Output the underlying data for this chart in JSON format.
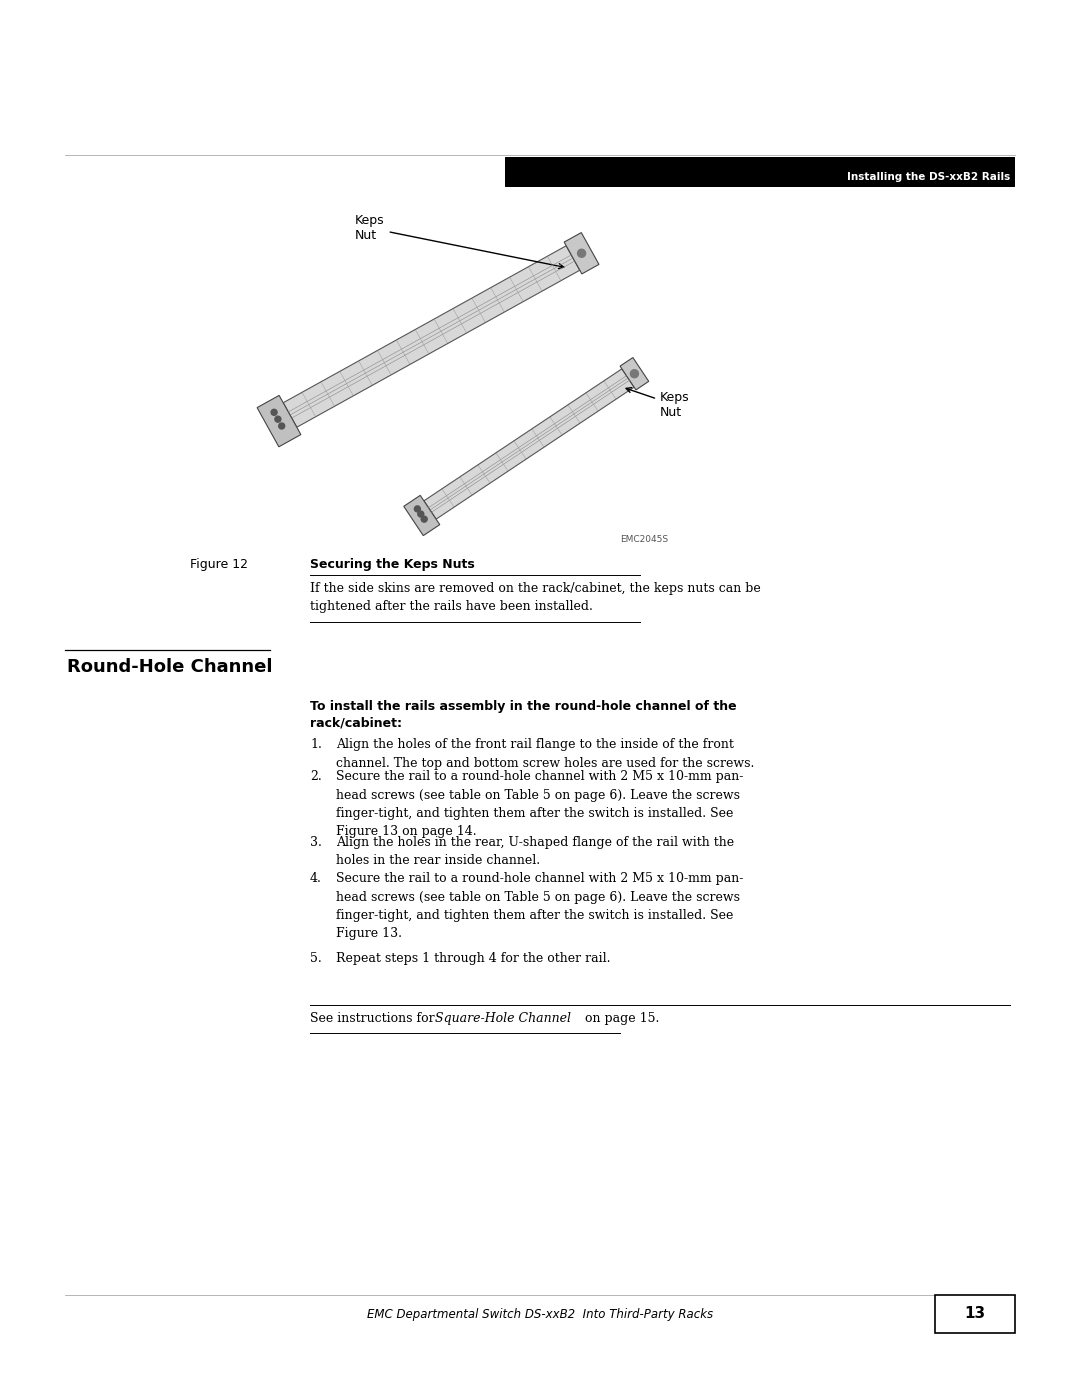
{
  "page_width": 10.8,
  "page_height": 13.97,
  "bg_color": "#ffffff",
  "header_bar_color": "#000000",
  "header_text": "Installing the DS-xxB2 Rails",
  "header_text_color": "#ffffff",
  "figure_label": "Figure 12",
  "figure_title": "Securing the Keps Nuts",
  "figure_caption_line1": "If the side skins are removed on the rack/cabinet, the keps nuts can be",
  "figure_caption_line2": "tightened after the rails have been installed.",
  "emc_code": "EMC2045S",
  "keps_nut_label_1": "Keps\nNut",
  "keps_nut_label_2": "Keps\nNut",
  "section_title": "Round-Hole Channel",
  "bold_intro_line1": "To install the rails assembly in the round-hole channel of the",
  "bold_intro_line2": "rack/cabinet:",
  "steps": [
    "Align the holes of the front rail flange to the inside of the front\nchannel. The top and bottom screw holes are used for the screws.",
    "Secure the rail to a round-hole channel with 2 M5 x 10-mm pan-\nhead screws (see table on Table 5 on page 6). Leave the screws\nfinger-tight, and tighten them after the switch is installed. See\nFigure 13 on page 14.",
    "Align the holes in the rear, U-shaped flange of the rail with the\nholes in the rear inside channel.",
    "Secure the rail to a round-hole channel with 2 M5 x 10-mm pan-\nhead screws (see table on Table 5 on page 6). Leave the screws\nfinger-tight, and tighten them after the switch is installed. See\nFigure 13.",
    "Repeat steps 1 through 4 for the other rail."
  ],
  "footer_note_pre": "See instructions for ",
  "footer_note_italic": "Square-Hole Channel",
  "footer_note_post": " on page 15.",
  "footer_text": "EMC Departmental Switch DS-xxB2  Into Third-Party Racks",
  "footer_page": "13"
}
